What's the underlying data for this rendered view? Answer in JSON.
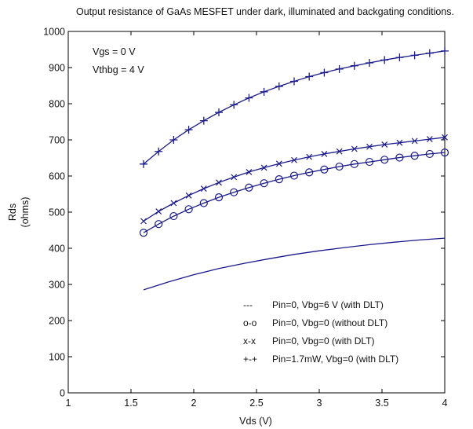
{
  "chart_data": {
    "type": "line",
    "title": "Output resistance of GaAs MESFET under dark, illuminated and backgating conditions.",
    "xlabel": "Vds (V)",
    "ylabel": "Rds",
    "ylabel_unit": "(ohms)",
    "xlim": [
      1,
      4
    ],
    "ylim": [
      0,
      1000
    ],
    "xticks": [
      1,
      1.5,
      2,
      2.5,
      3,
      3.5,
      4
    ],
    "xtick_labels": [
      "1",
      "1.5",
      "2",
      "2.5",
      "3",
      "3.5",
      "4"
    ],
    "yticks": [
      0,
      100,
      200,
      300,
      400,
      500,
      600,
      700,
      800,
      900,
      1000
    ],
    "ytick_labels": [
      "0",
      "100",
      "200",
      "300",
      "400",
      "500",
      "600",
      "700",
      "800",
      "900",
      "1000"
    ],
    "grid": false,
    "annotations": [
      "Vgs = 0 V",
      "Vthbg = 4 V"
    ],
    "legend_position": "bottom-right",
    "line_color": "#1a1a8c",
    "series": [
      {
        "name": "Pin=1.7mW, Vbg=0 (with DLT)",
        "legend_marker": "+-+",
        "marker": "plus",
        "x": [
          1.6,
          1.72,
          1.84,
          1.96,
          2.08,
          2.2,
          2.32,
          2.44,
          2.56,
          2.68,
          2.8,
          2.92,
          3.04,
          3.16,
          3.28,
          3.4,
          3.52,
          3.64,
          3.76,
          3.88,
          4.0
        ],
        "values": [
          633,
          668,
          700,
          728,
          753,
          776,
          797,
          816,
          833,
          848,
          862,
          875,
          886,
          896,
          905,
          913,
          921,
          928,
          934,
          940,
          946
        ]
      },
      {
        "name": "Pin=0, Vbg=0 (with DLT)",
        "legend_marker": "x-x",
        "marker": "x",
        "x": [
          1.6,
          1.72,
          1.84,
          1.96,
          2.08,
          2.2,
          2.32,
          2.44,
          2.56,
          2.68,
          2.8,
          2.92,
          3.04,
          3.16,
          3.28,
          3.4,
          3.52,
          3.64,
          3.76,
          3.88,
          4.0
        ],
        "values": [
          475,
          502,
          525,
          546,
          565,
          582,
          597,
          611,
          623,
          634,
          644,
          653,
          661,
          668,
          675,
          681,
          687,
          692,
          697,
          702,
          707
        ]
      },
      {
        "name": "Pin=0, Vbg=0 (without DLT)",
        "legend_marker": "o-o",
        "marker": "circle",
        "x": [
          1.6,
          1.72,
          1.84,
          1.96,
          2.08,
          2.2,
          2.32,
          2.44,
          2.56,
          2.68,
          2.8,
          2.92,
          3.04,
          3.16,
          3.28,
          3.4,
          3.52,
          3.64,
          3.76,
          3.88,
          4.0
        ],
        "values": [
          443,
          467,
          489,
          508,
          525,
          541,
          555,
          568,
          580,
          591,
          601,
          610,
          618,
          626,
          633,
          639,
          645,
          651,
          656,
          661,
          665
        ]
      },
      {
        "name": "Pin=0, Vbg=6 V (with DLT)",
        "legend_marker": "---",
        "marker": "none",
        "x": [
          1.6,
          1.8,
          2.0,
          2.2,
          2.4,
          2.6,
          2.8,
          3.0,
          3.2,
          3.4,
          3.6,
          3.8,
          4.0
        ],
        "values": [
          285,
          307,
          327,
          344,
          358,
          371,
          383,
          393,
          402,
          410,
          417,
          423,
          428
        ]
      }
    ]
  }
}
